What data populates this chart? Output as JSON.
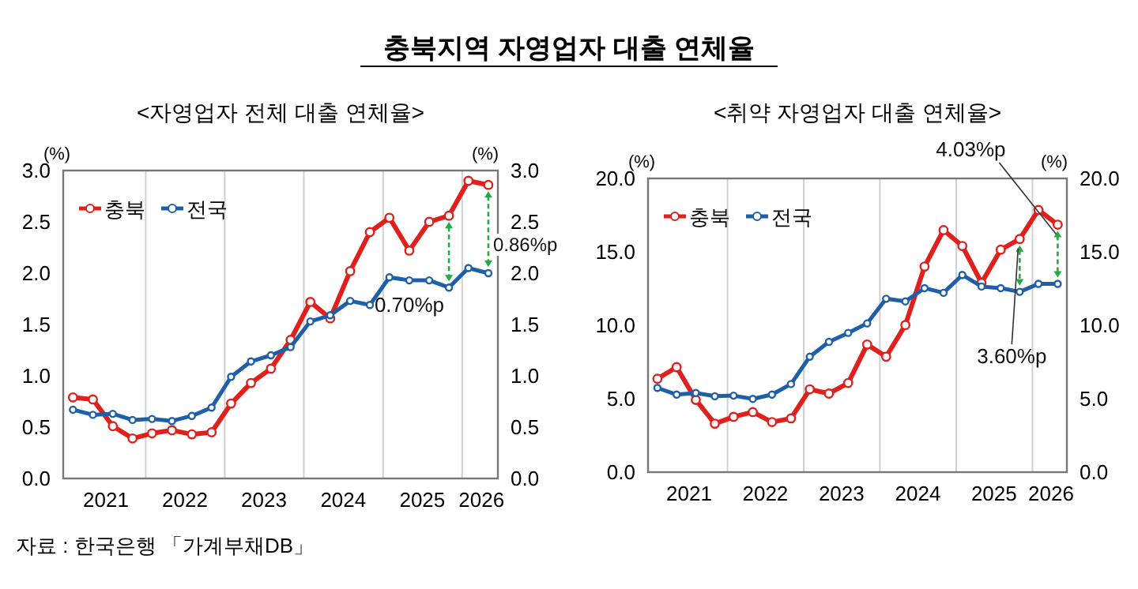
{
  "chart_data": [
    {
      "type": "line",
      "title": "충북지역 자영업자 대출 연체율",
      "subtitle": "<자영업자 전체 대출 연체율>",
      "ylabel": "(%)",
      "y2label": "(%)",
      "x": [
        "2021-03",
        "2021-06",
        "2021-09",
        "2021-12",
        "2022-03",
        "2022-06",
        "2022-09",
        "2022-12",
        "2023-03",
        "2023-06",
        "2023-09",
        "2023-12",
        "2024-03",
        "2024-06",
        "2024-09",
        "2024-12",
        "2025-03",
        "2025-06",
        "2025-09",
        "2025-12",
        "2026-03",
        "2026-06"
      ],
      "xlim": [
        "2021-01-15",
        "2026-07-15"
      ],
      "xticks": [
        {
          "value": "2021-07-31",
          "label": "2021"
        },
        {
          "value": "2022-01-31",
          "label": null
        },
        {
          "value": "2022-07-31",
          "label": "2022"
        },
        {
          "value": "2023-01-31",
          "label": null
        },
        {
          "value": "2023-07-31",
          "label": "2023"
        },
        {
          "value": "2024-01-31",
          "label": null
        },
        {
          "value": "2024-07-31",
          "label": "2024"
        },
        {
          "value": "2025-01-31",
          "label": null
        },
        {
          "value": "2025-07-31",
          "label": "2025"
        },
        {
          "value": "2026-01-31",
          "label": null
        },
        {
          "value": "2026-04-30",
          "label": "2026"
        }
      ],
      "ylim": [
        0,
        3
      ],
      "yticks": [
        {
          "value": 0,
          "label": "0.0"
        },
        {
          "value": 0.5,
          "label": "0.5"
        },
        {
          "value": 1,
          "label": "1.0"
        },
        {
          "value": 1.5,
          "label": "1.5"
        },
        {
          "value": 2,
          "label": "2.0"
        },
        {
          "value": 2.5,
          "label": "2.5"
        },
        {
          "value": 3,
          "label": "3.0"
        }
      ],
      "y2lim": [
        0,
        3
      ],
      "y2ticks": [
        {
          "value": 0,
          "label": "0.0"
        },
        {
          "value": 0.5,
          "label": "0.5"
        },
        {
          "value": 1,
          "label": "1.0"
        },
        {
          "value": 1.5,
          "label": "1.5"
        },
        {
          "value": 2,
          "label": "2.0"
        },
        {
          "value": 2.5,
          "label": "2.5"
        },
        {
          "value": 3,
          "label": "3.0"
        }
      ],
      "grid": "x",
      "legend": "top left",
      "marker": "circle",
      "line_style": "solid",
      "series": [
        {
          "name": "충북",
          "color": "#e0201c",
          "values": [
            0.79,
            0.77,
            0.51,
            0.39,
            0.44,
            0.47,
            0.43,
            0.45,
            0.73,
            0.93,
            1.07,
            1.35,
            1.72,
            1.56,
            2.02,
            2.4,
            2.54,
            2.22,
            2.5,
            2.56,
            2.9,
            2.86
          ]
        },
        {
          "name": "전국",
          "color": "#1f5fa8",
          "values": [
            0.67,
            0.62,
            0.63,
            0.57,
            0.58,
            0.56,
            0.61,
            0.69,
            0.99,
            1.14,
            1.2,
            1.28,
            1.53,
            1.59,
            1.73,
            1.69,
            1.96,
            1.93,
            1.93,
            1.86,
            2.05,
            2.0
          ]
        }
      ],
      "annotations": [
        {
          "text": "0.70%p",
          "x": "2025-12",
          "y": 2.56
        },
        {
          "text": "0.86%p",
          "x": "2026-06",
          "y": 2.86
        },
        "자료 : 한국은행 「가계부채DB」"
      ]
    },
    {
      "type": "line",
      "title": "<취약 자영업자 대출 연체율>",
      "ylabel": "(%)",
      "y2label": "(%)",
      "x": [
        "2021-03",
        "2021-06",
        "2021-09",
        "2021-12",
        "2022-03",
        "2022-06",
        "2022-09",
        "2022-12",
        "2023-03",
        "2023-06",
        "2023-09",
        "2023-12",
        "2024-03",
        "2024-06",
        "2024-09",
        "2024-12",
        "2025-03",
        "2025-06",
        "2025-09",
        "2025-12",
        "2026-03",
        "2026-06"
      ],
      "xlim": [
        "2021-01-15",
        "2026-07-15"
      ],
      "xticks": [
        {
          "value": "2021-07-31",
          "label": "2021"
        },
        {
          "value": "2022-01-31",
          "label": null
        },
        {
          "value": "2022-07-31",
          "label": "2022"
        },
        {
          "value": "2023-01-31",
          "label": null
        },
        {
          "value": "2023-07-31",
          "label": "2023"
        },
        {
          "value": "2024-01-31",
          "label": null
        },
        {
          "value": "2024-07-31",
          "label": "2024"
        },
        {
          "value": "2025-01-31",
          "label": null
        },
        {
          "value": "2025-07-31",
          "label": "2025"
        },
        {
          "value": "2026-01-31",
          "label": null
        },
        {
          "value": "2026-04-30",
          "label": "2026"
        }
      ],
      "ylim": [
        0,
        20
      ],
      "yticks": [
        {
          "value": 0,
          "label": "0.0"
        },
        {
          "value": 5,
          "label": "5.0"
        },
        {
          "value": 10,
          "label": "10.0"
        },
        {
          "value": 15,
          "label": "15.0"
        },
        {
          "value": 20,
          "label": "20.0"
        }
      ],
      "y2lim": [
        0,
        20
      ],
      "y2ticks": [
        {
          "value": 0,
          "label": "0.0"
        },
        {
          "value": 5,
          "label": "5.0"
        },
        {
          "value": 10,
          "label": "10.0"
        },
        {
          "value": 15,
          "label": "15.0"
        },
        {
          "value": 20,
          "label": "20.0"
        }
      ],
      "grid": "x",
      "legend": "top left",
      "marker": "circle",
      "line_style": "solid",
      "series": [
        {
          "name": "충북",
          "color": "#e0201c",
          "values": [
            6.36,
            7.15,
            4.92,
            3.3,
            3.77,
            4.09,
            3.41,
            3.66,
            5.64,
            5.35,
            6.07,
            8.69,
            7.86,
            10.02,
            14.0,
            16.48,
            15.4,
            12.89,
            15.15,
            15.88,
            17.85,
            16.85
          ]
        },
        {
          "name": "전국",
          "color": "#1f5fa8",
          "values": [
            5.74,
            5.28,
            5.39,
            5.17,
            5.21,
            4.99,
            5.28,
            6.0,
            7.86,
            8.87,
            9.48,
            10.13,
            11.81,
            11.63,
            12.53,
            12.21,
            13.43,
            12.64,
            12.53,
            12.28,
            12.82,
            12.82
          ]
        }
      ],
      "annotations": [
        {
          "text": "4.03%p",
          "x": "2026-06",
          "y": 16.85
        },
        {
          "text": "3.60%p",
          "x": "2025-12",
          "y": 15.88
        }
      ]
    }
  ]
}
